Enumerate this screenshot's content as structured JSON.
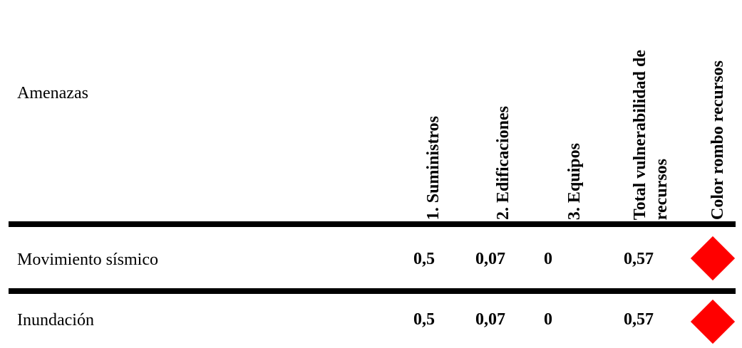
{
  "table": {
    "header": {
      "threats_label": "Amenazas",
      "col_suministros": "1. Suministros",
      "col_edificaciones": "2. Edificaciones",
      "col_equipos": "3. Equipos",
      "col_total_line1": "Total vulnerabilidad de",
      "col_total_line2": "recursos",
      "col_color": "Color rombo recursos"
    },
    "rows": [
      {
        "label": "Movimiento sísmico",
        "suministros": "0,5",
        "edificaciones": "0,07",
        "equipos": "0",
        "total": "0,57",
        "diamond_color": "#ff0000"
      },
      {
        "label": "Inundación",
        "suministros": "0,5",
        "edificaciones": "0,07",
        "equipos": "0",
        "total": "0,57",
        "diamond_color": "#ff0000"
      }
    ]
  }
}
